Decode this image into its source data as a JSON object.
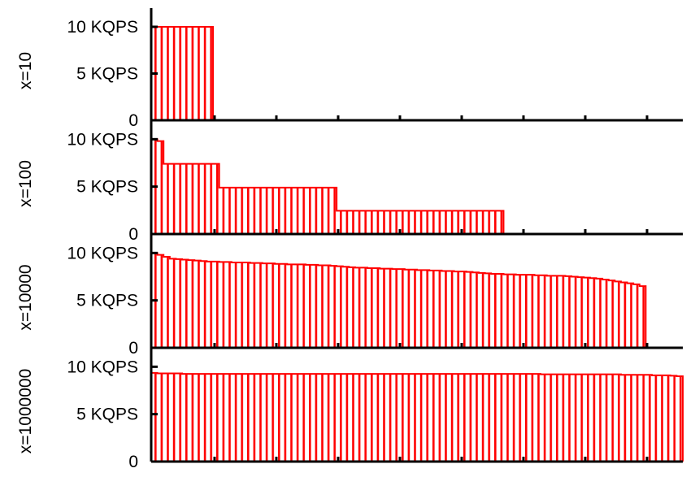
{
  "chart_data": [
    {
      "type": "bar",
      "panel_label": "x=10",
      "yticks": [
        {
          "value": 0,
          "label": "0"
        },
        {
          "value": 5,
          "label": "5 KQPS"
        },
        {
          "value": 10,
          "label": "10 KQPS"
        }
      ],
      "ylim": [
        0,
        12
      ],
      "x_slots": 86,
      "values": [
        10,
        10,
        10,
        10,
        10,
        10,
        10,
        10,
        10,
        10
      ]
    },
    {
      "type": "bar",
      "panel_label": "x=100",
      "yticks": [
        {
          "value": 0,
          "label": "0"
        },
        {
          "value": 5,
          "label": "5 KQPS"
        },
        {
          "value": 10,
          "label": "10 KQPS"
        }
      ],
      "ylim": [
        0,
        12
      ],
      "x_slots": 86,
      "values": [
        10,
        9.8,
        7.4,
        7.4,
        7.4,
        7.4,
        7.4,
        7.4,
        7.4,
        7.4,
        7.4,
        4.9,
        4.9,
        4.9,
        4.9,
        4.9,
        4.9,
        4.9,
        4.9,
        4.9,
        4.9,
        4.9,
        4.9,
        4.9,
        4.9,
        4.9,
        4.9,
        4.9,
        4.9,
        4.9,
        2.45,
        2.45,
        2.45,
        2.45,
        2.45,
        2.45,
        2.45,
        2.45,
        2.45,
        2.45,
        2.45,
        2.45,
        2.45,
        2.45,
        2.45,
        2.45,
        2.45,
        2.45,
        2.45,
        2.45,
        2.45,
        2.45,
        2.45,
        2.45,
        2.45,
        2.45,
        2.45
      ]
    },
    {
      "type": "bar",
      "panel_label": "x=10000",
      "yticks": [
        {
          "value": 0,
          "label": "0"
        },
        {
          "value": 5,
          "label": "5 KQPS"
        },
        {
          "value": 10,
          "label": "10 KQPS"
        }
      ],
      "ylim": [
        0,
        12
      ],
      "x_slots": 86,
      "values": [
        10,
        9.8,
        9.6,
        9.4,
        9.35,
        9.3,
        9.25,
        9.2,
        9.15,
        9.1,
        9.1,
        9.05,
        9.05,
        9.0,
        9.0,
        9.0,
        8.95,
        8.95,
        8.9,
        8.9,
        8.85,
        8.85,
        8.8,
        8.8,
        8.8,
        8.75,
        8.75,
        8.7,
        8.7,
        8.65,
        8.6,
        8.55,
        8.5,
        8.45,
        8.45,
        8.4,
        8.4,
        8.35,
        8.35,
        8.3,
        8.3,
        8.25,
        8.25,
        8.2,
        8.2,
        8.15,
        8.15,
        8.1,
        8.1,
        8.05,
        8.05,
        8.0,
        7.95,
        7.9,
        7.85,
        7.8,
        7.8,
        7.75,
        7.75,
        7.7,
        7.7,
        7.7,
        7.65,
        7.65,
        7.6,
        7.6,
        7.6,
        7.55,
        7.5,
        7.45,
        7.4,
        7.35,
        7.3,
        7.2,
        7.1,
        7.0,
        6.9,
        6.8,
        6.7,
        6.5
      ]
    },
    {
      "type": "bar",
      "panel_label": "x=1000000",
      "yticks": [
        {
          "value": 0,
          "label": "0"
        },
        {
          "value": 5,
          "label": "5 KQPS"
        },
        {
          "value": 10,
          "label": "10 KQPS"
        }
      ],
      "ylim": [
        0,
        12
      ],
      "x_slots": 86,
      "values": [
        9.35,
        9.3,
        9.3,
        9.3,
        9.3,
        9.25,
        9.25,
        9.25,
        9.25,
        9.25,
        9.25,
        9.25,
        9.25,
        9.25,
        9.25,
        9.25,
        9.25,
        9.25,
        9.25,
        9.25,
        9.25,
        9.25,
        9.25,
        9.25,
        9.25,
        9.25,
        9.25,
        9.25,
        9.25,
        9.25,
        9.25,
        9.25,
        9.25,
        9.25,
        9.25,
        9.25,
        9.25,
        9.25,
        9.25,
        9.25,
        9.25,
        9.25,
        9.25,
        9.25,
        9.25,
        9.25,
        9.25,
        9.25,
        9.25,
        9.25,
        9.25,
        9.25,
        9.25,
        9.25,
        9.25,
        9.25,
        9.25,
        9.25,
        9.25,
        9.25,
        9.25,
        9.25,
        9.25,
        9.2,
        9.2,
        9.2,
        9.2,
        9.2,
        9.2,
        9.2,
        9.2,
        9.2,
        9.2,
        9.2,
        9.2,
        9.2,
        9.15,
        9.15,
        9.15,
        9.15,
        9.15,
        9.1,
        9.1,
        9.1,
        9.05,
        9.0
      ]
    }
  ],
  "colors": {
    "bar_fill": "#ff0000",
    "bar_stripe": "#ffffff",
    "axis": "#000000"
  }
}
